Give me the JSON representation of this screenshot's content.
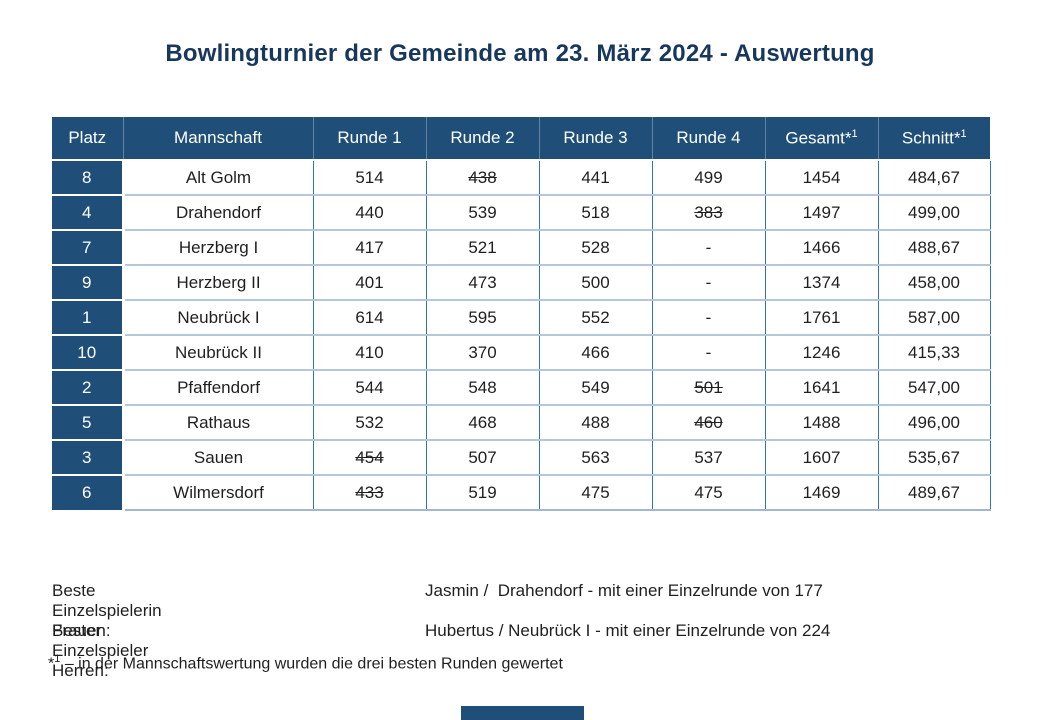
{
  "title": "Bowlingturnier der Gemeinde am 23. März 2024 - Auswertung",
  "colors": {
    "navy": "#1f4e79",
    "title_text": "#17375d",
    "grid_vertical": "#2e75b6",
    "grid_horizontal": "#b3c6da",
    "cell_text": "#1f1f1f"
  },
  "table": {
    "columns": [
      {
        "label": "Platz"
      },
      {
        "label": "Mannschaft"
      },
      {
        "label": "Runde 1"
      },
      {
        "label": "Runde 2"
      },
      {
        "label": "Runde 3"
      },
      {
        "label": "Runde 4"
      },
      {
        "label": "Gesamt",
        "marker": "*",
        "sup": "1"
      },
      {
        "label": "Schnitt",
        "marker": "*",
        "sup": "1"
      }
    ],
    "rows": [
      {
        "platz": "8",
        "team": "Alt Golm",
        "rounds": [
          [
            "514",
            false
          ],
          [
            "438",
            true
          ],
          [
            "441",
            false
          ],
          [
            "499",
            false
          ]
        ],
        "gesamt": "1454",
        "schnitt": "484,67"
      },
      {
        "platz": "4",
        "team": "Drahendorf",
        "rounds": [
          [
            "440",
            false
          ],
          [
            "539",
            false
          ],
          [
            "518",
            false
          ],
          [
            "383",
            true
          ]
        ],
        "gesamt": "1497",
        "schnitt": "499,00"
      },
      {
        "platz": "7",
        "team": "Herzberg I",
        "rounds": [
          [
            "417",
            false
          ],
          [
            "521",
            false
          ],
          [
            "528",
            false
          ],
          [
            "-",
            false
          ]
        ],
        "gesamt": "1466",
        "schnitt": "488,67"
      },
      {
        "platz": "9",
        "team": "Herzberg II",
        "rounds": [
          [
            "401",
            false
          ],
          [
            "473",
            false
          ],
          [
            "500",
            false
          ],
          [
            "-",
            false
          ]
        ],
        "gesamt": "1374",
        "schnitt": "458,00"
      },
      {
        "platz": "1",
        "team": "Neubrück I",
        "rounds": [
          [
            "614",
            false
          ],
          [
            "595",
            false
          ],
          [
            "552",
            false
          ],
          [
            "-",
            false
          ]
        ],
        "gesamt": "1761",
        "schnitt": "587,00"
      },
      {
        "platz": "10",
        "team": "Neubrück II",
        "rounds": [
          [
            "410",
            false
          ],
          [
            "370",
            false
          ],
          [
            "466",
            false
          ],
          [
            "-",
            false
          ]
        ],
        "gesamt": "1246",
        "schnitt": "415,33"
      },
      {
        "platz": "2",
        "team": "Pfaffendorf",
        "rounds": [
          [
            "544",
            false
          ],
          [
            "548",
            false
          ],
          [
            "549",
            false
          ],
          [
            "501",
            true
          ]
        ],
        "gesamt": "1641",
        "schnitt": "547,00"
      },
      {
        "platz": "5",
        "team": "Rathaus",
        "rounds": [
          [
            "532",
            false
          ],
          [
            "468",
            false
          ],
          [
            "488",
            false
          ],
          [
            "460",
            true
          ]
        ],
        "gesamt": "1488",
        "schnitt": "496,00"
      },
      {
        "platz": "3",
        "team": "Sauen",
        "rounds": [
          [
            "454",
            true
          ],
          [
            "507",
            false
          ],
          [
            "563",
            false
          ],
          [
            "537",
            false
          ]
        ],
        "gesamt": "1607",
        "schnitt": "535,67"
      },
      {
        "platz": "6",
        "team": "Wilmersdorf",
        "rounds": [
          [
            "433",
            true
          ],
          [
            "519",
            false
          ],
          [
            "475",
            false
          ],
          [
            "475",
            false
          ]
        ],
        "gesamt": "1469",
        "schnitt": "489,67"
      }
    ]
  },
  "footer": {
    "women_label": "Beste Einzelspielerin Frauen:",
    "women_value": "Jasmin /  Drahendorf - mit einer Einzelrunde von 177",
    "men_label": "Bester Einzelspieler Herren:",
    "men_value": "Hubertus / Neubrück I - mit einer Einzelrunde von 224",
    "footnote_star": "*",
    "footnote_sup": "1",
    "footnote_text": "– in der Mannschaftswertung wurden die drei besten Runden gewertet"
  }
}
